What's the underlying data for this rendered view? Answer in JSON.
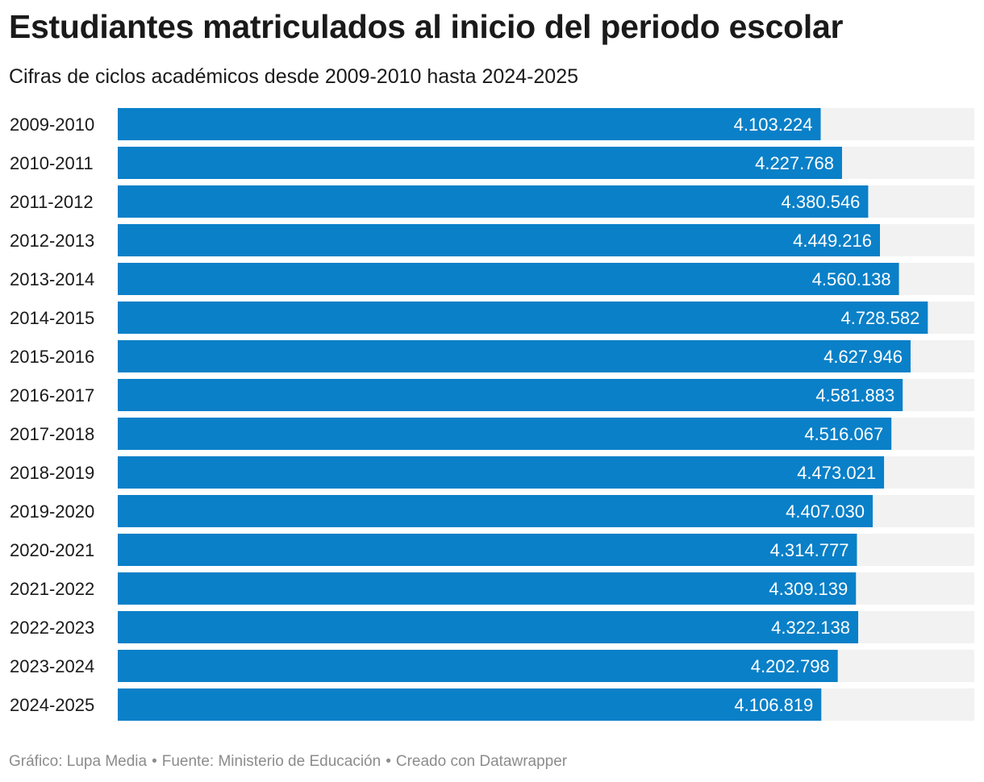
{
  "chart_data": {
    "type": "bar",
    "orientation": "horizontal",
    "title": "Estudiantes matriculados al inicio del periodo escolar",
    "subtitle": "Cifras de ciclos académicos desde 2009-2010 hasta 2024-2025",
    "categories": [
      "2009-2010",
      "2010-2011",
      "2011-2012",
      "2012-2013",
      "2013-2014",
      "2014-2015",
      "2015-2016",
      "2016-2017",
      "2017-2018",
      "2018-2019",
      "2019-2020",
      "2020-2021",
      "2021-2022",
      "2022-2023",
      "2023-2024",
      "2024-2025"
    ],
    "values": [
      4103224,
      4227768,
      4380546,
      4449216,
      4560138,
      4728582,
      4627946,
      4581883,
      4516067,
      4473021,
      4407030,
      4314777,
      4309139,
      4322138,
      4202798,
      4106819
    ],
    "value_labels": [
      "4.103.224",
      "4.227.768",
      "4.380.546",
      "4.449.216",
      "4.560.138",
      "4.728.582",
      "4.627.946",
      "4.581.883",
      "4.516.067",
      "4.473.021",
      "4.407.030",
      "4.314.777",
      "4.309.139",
      "4.322.138",
      "4.202.798",
      "4.106.819"
    ],
    "xlim": [
      0,
      5000000
    ],
    "xlabel": "",
    "ylabel": "",
    "grid": false,
    "legend": "none"
  },
  "colors": {
    "bar": "#0a80c8",
    "track": "#f2f2f2"
  },
  "footer": {
    "credit": "Gráfico: Lupa Media",
    "source": "Fuente: Ministerio de Educación",
    "tool": "Creado con Datawrapper",
    "separator": "•"
  }
}
